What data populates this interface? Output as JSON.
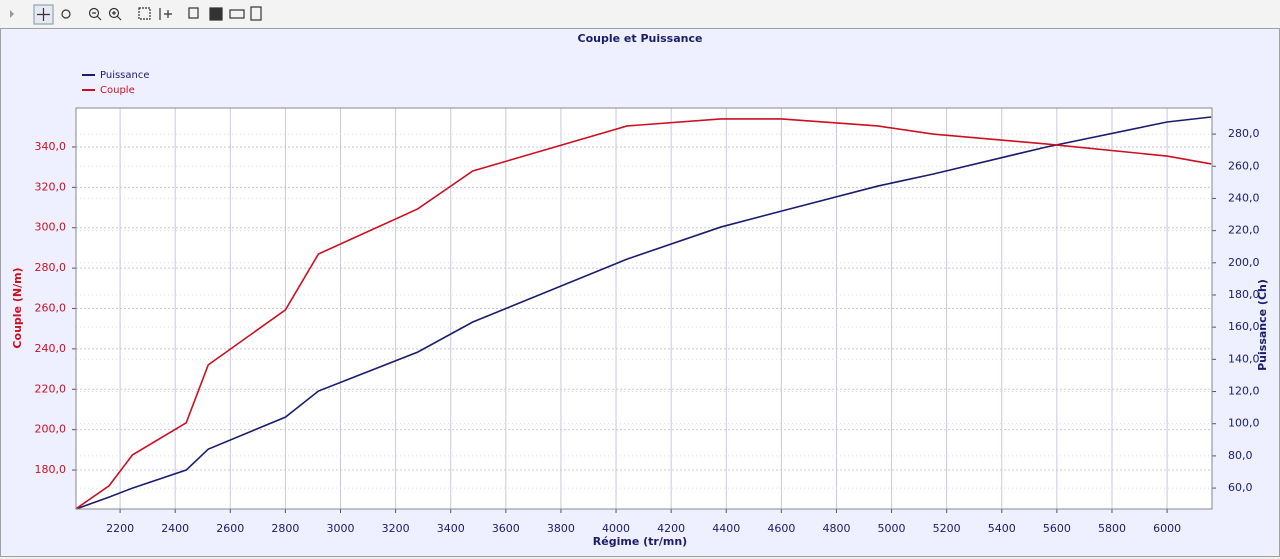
{
  "chart_data": {
    "type": "line",
    "title": "Couple et Puissance",
    "x_label": "Régime (tr/mn)",
    "y_label": "Couple (N/m)",
    "y2_label": "Puissance (Ch)",
    "x": [
      2040,
      2160,
      2245,
      2440,
      2520,
      2800,
      2920,
      3280,
      3480,
      4040,
      4380,
      4600,
      4950,
      5150,
      5560,
      6000,
      6160
    ],
    "series": [
      {
        "name": "Puissance",
        "color": "#1c1c6e",
        "axis": "y2",
        "values": [
          47,
          54.4,
          60,
          71.2,
          84.2,
          104.1,
          120.3,
          144.5,
          163.2,
          202.3,
          222.2,
          232.1,
          247.7,
          255.1,
          271.9,
          287.5,
          290.6
        ]
      },
      {
        "name": "Couple",
        "color": "#cc1020",
        "values": [
          160.8,
          172.2,
          187.5,
          203.4,
          232.1,
          259.3,
          287.0,
          309.3,
          328.1,
          350.4,
          353.9,
          353.9,
          350.4,
          346.4,
          341.5,
          335.5,
          331.6
        ]
      }
    ],
    "xlim": [
      2040,
      6163
    ],
    "xticks": [
      2200,
      2400,
      2600,
      2800,
      3000,
      3200,
      3400,
      3600,
      3800,
      4000,
      4200,
      4400,
      4600,
      4800,
      5000,
      5200,
      5400,
      5600,
      5800,
      6000
    ],
    "ylim": [
      160.7,
      359.3
    ],
    "yticks": [
      {
        "value": 180,
        "label": "180,0"
      },
      {
        "value": 200,
        "label": "200,0"
      },
      {
        "value": 220,
        "label": "220,0"
      },
      {
        "value": 240,
        "label": "240,0"
      },
      {
        "value": 260,
        "label": "260,0"
      },
      {
        "value": 280,
        "label": "280,0"
      },
      {
        "value": 300,
        "label": "300,0"
      },
      {
        "value": 320,
        "label": "320,0"
      },
      {
        "value": 340,
        "label": "340,0"
      }
    ],
    "y2lim": [
      47,
      296.2
    ],
    "y2ticks": [
      {
        "value": 60,
        "label": "60,0"
      },
      {
        "value": 80,
        "label": "80,0"
      },
      {
        "value": 100,
        "label": "100,0"
      },
      {
        "value": 120,
        "label": "120,0"
      },
      {
        "value": 140,
        "label": "140,0"
      },
      {
        "value": 160,
        "label": "160,0"
      },
      {
        "value": 180,
        "label": "180,0"
      },
      {
        "value": 200,
        "label": "200,0"
      },
      {
        "value": 220,
        "label": "220,0"
      },
      {
        "value": 240,
        "label": "240,0"
      },
      {
        "value": 260,
        "label": "260,0"
      },
      {
        "value": 280,
        "label": "280,0"
      }
    ],
    "grid": true,
    "legend": "top-left"
  }
}
